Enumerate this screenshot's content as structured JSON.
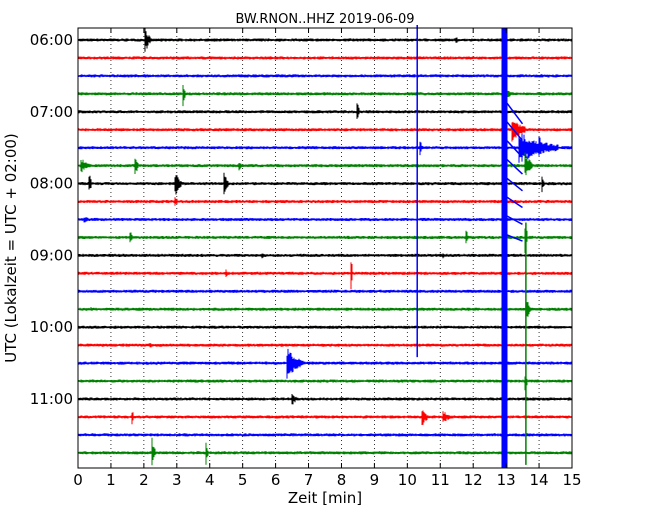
{
  "chart_data": {
    "type": "line",
    "title": "BW.RNON..HHZ 2019-06-09",
    "xlabel": "Zeit  [min]",
    "ylabel": "UTC (Lokalzeit = UTC + 02:00)",
    "xlim": [
      0,
      15
    ],
    "x_ticks": [
      "0",
      "1",
      "2",
      "3",
      "4",
      "5",
      "6",
      "7",
      "8",
      "9",
      "10",
      "11",
      "12",
      "13",
      "14",
      "15"
    ],
    "y_ticks": [
      "06:00",
      "07:00",
      "08:00",
      "09:00",
      "10:00",
      "11:00"
    ],
    "grid": "vertical-dotted",
    "trace_interval_min": 15,
    "trace_colors": [
      "#000000",
      "#ff0000",
      "#0000ff",
      "#008000"
    ],
    "traces": [
      {
        "start": "06:00",
        "events": [
          {
            "t": 2.05,
            "amp": 14,
            "dur": 0.15
          },
          {
            "t": 11.5,
            "amp": 3,
            "dur": 0.1
          }
        ]
      },
      {
        "start": "06:15",
        "events": []
      },
      {
        "start": "06:30",
        "events": [
          {
            "t": 10.3,
            "amp": 0,
            "dur": 0
          }
        ]
      },
      {
        "start": "06:45",
        "events": [
          {
            "t": 3.2,
            "amp": 16,
            "dur": 0.05
          },
          {
            "t": 13.0,
            "amp": 6,
            "dur": 0.2
          }
        ]
      },
      {
        "start": "07:00",
        "events": [
          {
            "t": 8.5,
            "amp": 9,
            "dur": 0.05
          }
        ]
      },
      {
        "start": "07:15",
        "events": [
          {
            "t": 13.2,
            "amp": 14,
            "dur": 0.4
          }
        ]
      },
      {
        "start": "07:30",
        "events": [
          {
            "t": 10.4,
            "amp": 8,
            "dur": 0.05
          },
          {
            "t": 13.4,
            "amp": 16,
            "dur": 1.2
          },
          {
            "t": 14.0,
            "amp": 12,
            "dur": 0.3
          }
        ]
      },
      {
        "start": "07:45",
        "events": [
          {
            "t": 0.1,
            "amp": 8,
            "dur": 0.3
          },
          {
            "t": 1.75,
            "amp": 10,
            "dur": 0.1
          },
          {
            "t": 4.9,
            "amp": 5,
            "dur": 0.1
          },
          {
            "t": 13.6,
            "amp": 14,
            "dur": 0.2
          }
        ]
      },
      {
        "start": "08:00",
        "events": [
          {
            "t": 0.35,
            "amp": 12,
            "dur": 0.06
          },
          {
            "t": 2.95,
            "amp": 14,
            "dur": 0.2
          },
          {
            "t": 4.45,
            "amp": 12,
            "dur": 0.12
          },
          {
            "t": 14.1,
            "amp": 10,
            "dur": 0.05
          }
        ]
      },
      {
        "start": "08:15",
        "events": [
          {
            "t": 2.95,
            "amp": 6,
            "dur": 0.1
          }
        ]
      },
      {
        "start": "08:30",
        "events": [
          {
            "t": 0.2,
            "amp": 4,
            "dur": 0.2
          }
        ]
      },
      {
        "start": "08:45",
        "events": [
          {
            "t": 1.6,
            "amp": 8,
            "dur": 0.05
          },
          {
            "t": 11.8,
            "amp": 8,
            "dur": 0.05
          },
          {
            "t": 13.6,
            "amp": 16,
            "dur": 0.05
          }
        ]
      },
      {
        "start": "09:00",
        "events": [
          {
            "t": 5.6,
            "amp": 3,
            "dur": 0.1
          },
          {
            "t": 11.1,
            "amp": 3,
            "dur": 0.1
          }
        ]
      },
      {
        "start": "09:15",
        "events": [
          {
            "t": 4.5,
            "amp": 4,
            "dur": 0.1
          },
          {
            "t": 8.3,
            "amp": 16,
            "dur": 0.05
          }
        ]
      },
      {
        "start": "09:30",
        "events": []
      },
      {
        "start": "09:45",
        "events": [
          {
            "t": 0.4,
            "amp": 3,
            "dur": 0.1
          },
          {
            "t": 13.65,
            "amp": 10,
            "dur": 0.1
          }
        ]
      },
      {
        "start": "10:00",
        "events": []
      },
      {
        "start": "10:15",
        "events": [
          {
            "t": 2.2,
            "amp": 3,
            "dur": 0.1
          }
        ]
      },
      {
        "start": "10:30",
        "events": [
          {
            "t": 6.35,
            "amp": 16,
            "dur": 0.5
          }
        ]
      },
      {
        "start": "10:45",
        "events": [
          {
            "t": 13.6,
            "amp": 10,
            "dur": 0.05
          }
        ]
      },
      {
        "start": "11:00",
        "events": [
          {
            "t": 6.5,
            "amp": 7,
            "dur": 0.2
          }
        ]
      },
      {
        "start": "11:15",
        "events": [
          {
            "t": 1.65,
            "amp": 9,
            "dur": 0.05
          },
          {
            "t": 10.45,
            "amp": 10,
            "dur": 0.2
          },
          {
            "t": 11.1,
            "amp": 6,
            "dur": 0.3
          }
        ]
      },
      {
        "start": "11:30",
        "events": []
      },
      {
        "start": "11:45",
        "events": [
          {
            "t": 2.25,
            "amp": 16,
            "dur": 0.1
          },
          {
            "t": 3.9,
            "amp": 12,
            "dur": 0.06
          }
        ]
      }
    ],
    "continuous_events": [
      {
        "t": 10.3,
        "from_trace": 0,
        "to_trace": 17,
        "color": "#0000ff"
      },
      {
        "t": 12.95,
        "from_trace": 0,
        "to_trace": 23,
        "color": "#0000ff"
      },
      {
        "t": 13.6,
        "from_trace": 11,
        "to_trace": 23,
        "color": "#008000"
      }
    ]
  }
}
